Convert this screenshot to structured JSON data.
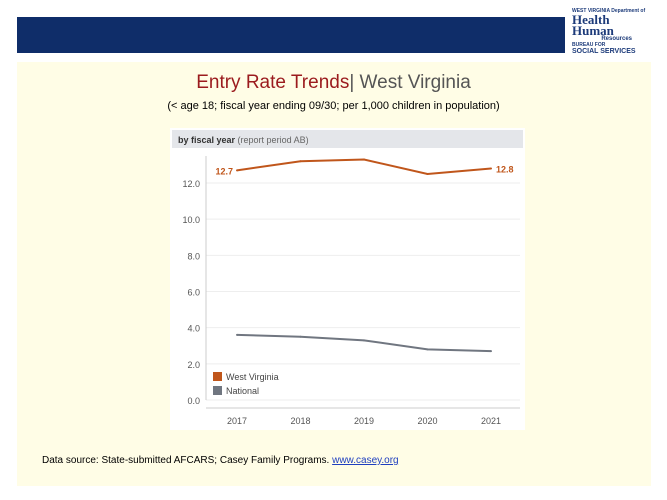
{
  "logo": {
    "line1": "WEST VIRGINIA Department of",
    "line2": "Health",
    "line3": "Human",
    "line4": "Resources",
    "line5": "BUREAU FOR",
    "line6": "SOCIAL SERVICES"
  },
  "title": {
    "main": "Entry Rate Trends",
    "sep": "| ",
    "state": "West Virginia"
  },
  "subtitle": "(< age 18; fiscal year ending 09/30; per 1,000 children in population)",
  "chart_data": {
    "type": "line",
    "header_bold": "by fiscal year",
    "header_rest": " (report period AB)",
    "categories": [
      "2017",
      "2018",
      "2019",
      "2020",
      "2021"
    ],
    "yticks": [
      "0.0",
      "2.0",
      "4.0",
      "6.0",
      "8.0",
      "10.0",
      "12.0"
    ],
    "ylim": [
      0,
      13.5
    ],
    "grid": true,
    "legend_placement": "bottom-left",
    "series": [
      {
        "name": "West Virginia",
        "color": "#c0561b",
        "values": [
          12.7,
          13.2,
          13.3,
          12.5,
          12.8
        ],
        "labels": [
          "12.7",
          "",
          "",
          "",
          "12.8"
        ]
      },
      {
        "name": "National",
        "color": "#707680",
        "values": [
          3.6,
          3.5,
          3.3,
          2.8,
          2.7
        ]
      }
    ]
  },
  "source": {
    "text": "Data source: State-submitted AFCARS; Casey Family Programs. ",
    "link": "www.casey.org"
  }
}
